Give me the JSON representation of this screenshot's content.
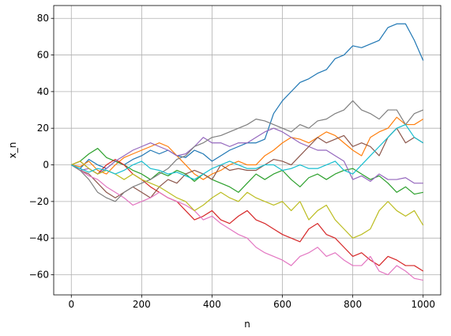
{
  "chart_data": {
    "type": "line",
    "x_label": "n",
    "y_label": "x_n",
    "grid": true,
    "xlim": [
      -50,
      1050
    ],
    "ylim": [
      -71,
      87
    ],
    "xticks": [
      0,
      200,
      400,
      600,
      800,
      1000
    ],
    "yticks": [
      {
        "value": -60,
        "label": "−60"
      },
      {
        "value": -40,
        "label": "−40"
      },
      {
        "value": -20,
        "label": "−20"
      },
      0,
      20,
      40,
      60,
      80
    ],
    "x": [
      0,
      25,
      50,
      75,
      100,
      125,
      150,
      175,
      200,
      225,
      250,
      275,
      300,
      325,
      350,
      375,
      400,
      425,
      450,
      475,
      500,
      525,
      550,
      575,
      600,
      625,
      650,
      675,
      700,
      725,
      750,
      775,
      800,
      825,
      850,
      875,
      900,
      925,
      950,
      975,
      1000
    ],
    "series": [
      {
        "color": "#1f77b4",
        "values": [
          0,
          -2,
          3,
          0,
          -2,
          2,
          0,
          3,
          5,
          8,
          6,
          8,
          5,
          4,
          8,
          6,
          2,
          5,
          8,
          10,
          12,
          12,
          14,
          28,
          35,
          40,
          45,
          47,
          50,
          52,
          58,
          60,
          65,
          64,
          66,
          68,
          75,
          77,
          77,
          68,
          57
        ]
      },
      {
        "color": "#ff7f0e",
        "values": [
          0,
          -1,
          2,
          -3,
          -5,
          0,
          4,
          6,
          8,
          10,
          12,
          10,
          5,
          0,
          -5,
          -8,
          -5,
          -3,
          0,
          2,
          0,
          0,
          5,
          8,
          12,
          15,
          14,
          12,
          15,
          18,
          16,
          12,
          8,
          5,
          15,
          18,
          20,
          26,
          22,
          22,
          25
        ]
      },
      {
        "color": "#2ca02c",
        "values": [
          0,
          2,
          6,
          9,
          4,
          2,
          0,
          -3,
          -5,
          -8,
          -4,
          -6,
          -3,
          -5,
          -9,
          -5,
          -8,
          -10,
          -12,
          -15,
          -10,
          -5,
          -8,
          -5,
          -3,
          -8,
          -12,
          -7,
          -5,
          -8,
          -5,
          -3,
          -2,
          -5,
          -8,
          -6,
          -10,
          -15,
          -12,
          -16,
          -15
        ]
      },
      {
        "color": "#d62728",
        "values": [
          0,
          2,
          -2,
          -5,
          0,
          3,
          0,
          -5,
          -8,
          -12,
          -15,
          -18,
          -20,
          -25,
          -30,
          -28,
          -25,
          -30,
          -32,
          -28,
          -25,
          -30,
          -32,
          -35,
          -38,
          -40,
          -42,
          -35,
          -32,
          -38,
          -40,
          -45,
          -50,
          -48,
          -52,
          -55,
          -50,
          -52,
          -55,
          -55,
          -58
        ]
      },
      {
        "color": "#9467bd",
        "values": [
          0,
          -3,
          -2,
          -5,
          -2,
          2,
          5,
          8,
          10,
          12,
          10,
          8,
          5,
          6,
          10,
          15,
          12,
          12,
          10,
          12,
          12,
          15,
          18,
          20,
          18,
          15,
          12,
          10,
          8,
          8,
          5,
          2,
          -8,
          -6,
          -9,
          -5,
          -8,
          -8,
          -7,
          -10,
          -10
        ]
      },
      {
        "color": "#8c564b",
        "values": [
          0,
          -3,
          -5,
          -10,
          -15,
          -18,
          -15,
          -12,
          -15,
          -18,
          -12,
          -8,
          -10,
          -5,
          -3,
          -5,
          -8,
          0,
          -3,
          -2,
          -3,
          -3,
          0,
          3,
          2,
          0,
          5,
          10,
          15,
          12,
          14,
          16,
          10,
          12,
          10,
          5,
          15,
          20,
          12,
          15,
          12
        ]
      },
      {
        "color": "#e377c2",
        "values": [
          0,
          -3,
          -6,
          -8,
          -12,
          -15,
          -18,
          -22,
          -20,
          -18,
          -15,
          -18,
          -20,
          -22,
          -25,
          -30,
          -28,
          -32,
          -35,
          -38,
          -40,
          -45,
          -48,
          -50,
          -52,
          -55,
          -50,
          -48,
          -45,
          -50,
          -48,
          -52,
          -55,
          -55,
          -50,
          -58,
          -60,
          -55,
          -58,
          -62,
          -63
        ]
      },
      {
        "color": "#7f7f7f",
        "values": [
          0,
          -3,
          -8,
          -15,
          -18,
          -20,
          -15,
          -12,
          -10,
          -8,
          -5,
          -2,
          3,
          5,
          10,
          12,
          15,
          16,
          18,
          20,
          22,
          25,
          24,
          22,
          20,
          18,
          22,
          20,
          24,
          25,
          28,
          30,
          35,
          30,
          28,
          25,
          30,
          30,
          22,
          28,
          30
        ]
      },
      {
        "color": "#bcbd22",
        "values": [
          0,
          2,
          -2,
          -5,
          -3,
          -5,
          -8,
          -5,
          -8,
          -10,
          -12,
          -15,
          -18,
          -20,
          -25,
          -22,
          -18,
          -15,
          -18,
          -20,
          -15,
          -18,
          -20,
          -22,
          -20,
          -25,
          -20,
          -30,
          -25,
          -22,
          -30,
          -35,
          -40,
          -38,
          -35,
          -25,
          -20,
          -25,
          -28,
          -25,
          -33
        ]
      },
      {
        "color": "#17becf",
        "values": [
          0,
          -2,
          -4,
          -2,
          -3,
          -5,
          -3,
          0,
          2,
          -2,
          -3,
          -5,
          -4,
          -6,
          -8,
          -5,
          -2,
          0,
          2,
          0,
          -2,
          -2,
          0,
          0,
          -3,
          -2,
          0,
          -2,
          -2,
          0,
          2,
          -3,
          -5,
          0,
          5,
          10,
          15,
          20,
          22,
          15,
          12
        ]
      }
    ]
  }
}
